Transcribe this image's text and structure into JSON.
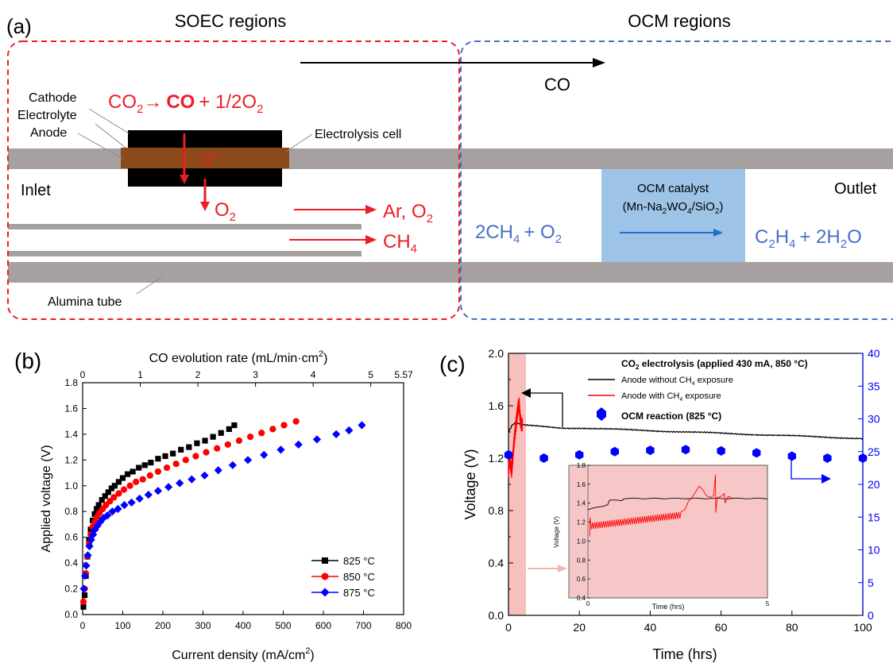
{
  "panel_a": {
    "label": "(a)",
    "soec_title": "SOEC regions",
    "ocm_title": "OCM regions",
    "co_arrow_label": "CO",
    "cathode": "Cathode",
    "electrolyte": "Electrolyte",
    "anode": "Anode",
    "reaction_main": "CO",
    "reaction_sub": "2",
    "reaction_arrow": "→",
    "reaction_bold": "CO",
    "reaction_tail": "+ 1/2O",
    "reaction_tail_sub": "2",
    "o2minus": "O",
    "o2minus_sup": "2-",
    "electrolysis_cell": "Electrolysis cell",
    "inlet": "Inlet",
    "o2_main": "O",
    "o2_sub": "2",
    "ar_o2_main": "Ar, O",
    "ar_o2_sub": "2",
    "ch4_main": "CH",
    "ch4_sub": "4",
    "alumina_tube": "Alumina tube",
    "lhs_a": "2CH",
    "lhs_a_sub": "4",
    "lhs_b": "+ O",
    "lhs_b_sub": "2",
    "ocm_catalyst": "OCM catalyst",
    "ocm_catalyst_formula_a": "(Mn-Na",
    "ocm_catalyst_formula_sub1": "2",
    "ocm_catalyst_formula_b": "WO",
    "ocm_catalyst_formula_sub2": "4",
    "ocm_catalyst_formula_c": "/SiO",
    "ocm_catalyst_formula_sub3": "2",
    "ocm_catalyst_formula_d": ")",
    "rhs_a": "C",
    "rhs_a_sub": "2",
    "rhs_b": "H",
    "rhs_b_sub": "4",
    "rhs_c": "+ 2H",
    "rhs_c_sub": "2",
    "rhs_d": "O",
    "outlet": "Outlet",
    "colors": {
      "red": "#ee1c25",
      "blue": "#4a6fc7",
      "tube": "#a6a1a0",
      "cell": "#8b4a1a",
      "catalyst": "#9dc3e6"
    }
  },
  "panel_b": {
    "label": "(b)",
    "ylabel": "Applied voltage (V)",
    "xlabel_main": "Current density (mA/cm",
    "xlabel_sup": "2",
    "xlabel_end": ")",
    "top_label_main": "CO evolution rate (mL/min·cm",
    "top_label_sup": "2",
    "top_label_end": ")",
    "top_ticks": [
      "0",
      "1",
      "2",
      "3",
      "4",
      "5",
      "5.57"
    ],
    "x_ticks": [
      "0",
      "100",
      "200",
      "300",
      "400",
      "500",
      "600",
      "700",
      "800"
    ],
    "y_ticks": [
      "0.0",
      "0.2",
      "0.4",
      "0.6",
      "0.8",
      "1.0",
      "1.2",
      "1.4",
      "1.6",
      "1.8"
    ],
    "legend": [
      {
        "name": "825 °C",
        "color": "#000000",
        "marker": "square"
      },
      {
        "name": "850 °C",
        "color": "#ff0000",
        "marker": "circle"
      },
      {
        "name": "875 °C",
        "color": "#0000ff",
        "marker": "diamond"
      }
    ]
  },
  "panel_c": {
    "label": "(c)",
    "ylabel_left": "Voltage (V)",
    "xlabel": "Time (hrs)",
    "x_ticks": [
      "0",
      "20",
      "40",
      "60",
      "80",
      "100"
    ],
    "y_ticks_left": [
      "0.0",
      "0.4",
      "0.8",
      "1.2",
      "1.6",
      "2.0"
    ],
    "y_ticks_right": [
      "0",
      "5",
      "10",
      "15",
      "20",
      "25",
      "30",
      "35",
      "40"
    ],
    "legend_title_a": "CO",
    "legend_title_sub": "2",
    "legend_title_b": " electrolysis (applied 430 mA, 850 °C)",
    "legend_black_a": "Anode without CH",
    "legend_black_sub": "4",
    "legend_black_b": " exposure",
    "legend_red_a": "Anode with CH",
    "legend_red_sub": "4",
    "legend_red_b": " exposure",
    "legend_ocm": "OCM reaction (825 °C)",
    "inset_ylabel": "Voltage (V)",
    "inset_xlabel": "Time (hrs)",
    "inset_x_ticks": [
      "0",
      "5"
    ],
    "inset_y_ticks": [
      "0.4",
      "0.6",
      "0.8",
      "1.0",
      "1.2",
      "1.4",
      "1.6",
      "1.8"
    ]
  },
  "chart_data": [
    {
      "type": "scatter",
      "panel": "b",
      "xlabel": "Current density (mA/cm2)",
      "ylabel": "Applied voltage (V)",
      "xlim": [
        0,
        800
      ],
      "ylim": [
        0,
        1.8
      ],
      "top_axis": {
        "label": "CO evolution rate (mL/min·cm2)",
        "range": [
          0,
          5.57
        ]
      },
      "series": [
        {
          "name": "825 °C",
          "color": "#000000",
          "marker": "square",
          "x": [
            2,
            5,
            8,
            12,
            16,
            20,
            25,
            30,
            35,
            40,
            48,
            56,
            64,
            72,
            80,
            90,
            100,
            112,
            125,
            140,
            155,
            170,
            188,
            206,
            225,
            245,
            265,
            285,
            305,
            325,
            345,
            365,
            378
          ],
          "y": [
            0.06,
            0.15,
            0.3,
            0.45,
            0.58,
            0.66,
            0.73,
            0.78,
            0.82,
            0.85,
            0.89,
            0.92,
            0.95,
            0.98,
            1.0,
            1.03,
            1.06,
            1.09,
            1.11,
            1.14,
            1.16,
            1.18,
            1.21,
            1.23,
            1.25,
            1.28,
            1.3,
            1.33,
            1.35,
            1.38,
            1.41,
            1.44,
            1.47
          ]
        },
        {
          "name": "850 °C",
          "color": "#ff0000",
          "marker": "circle",
          "x": [
            2,
            5,
            8,
            12,
            16,
            20,
            25,
            30,
            36,
            42,
            50,
            58,
            68,
            78,
            90,
            103,
            118,
            133,
            150,
            168,
            188,
            210,
            233,
            257,
            282,
            308,
            335,
            362,
            390,
            418,
            446,
            474,
            502,
            532
          ],
          "y": [
            0.1,
            0.2,
            0.32,
            0.45,
            0.55,
            0.62,
            0.68,
            0.72,
            0.76,
            0.79,
            0.82,
            0.85,
            0.88,
            0.91,
            0.94,
            0.97,
            1.0,
            1.03,
            1.05,
            1.08,
            1.11,
            1.14,
            1.17,
            1.2,
            1.23,
            1.26,
            1.29,
            1.32,
            1.35,
            1.38,
            1.41,
            1.44,
            1.47,
            1.5
          ]
        },
        {
          "name": "875 °C",
          "color": "#0000ff",
          "marker": "diamond",
          "x": [
            3,
            6,
            9,
            13,
            17,
            21,
            26,
            31,
            37,
            44,
            52,
            62,
            74,
            88,
            104,
            122,
            142,
            164,
            188,
            214,
            242,
            272,
            304,
            338,
            374,
            412,
            452,
            494,
            538,
            584,
            632,
            664,
            696
          ],
          "y": [
            0.2,
            0.3,
            0.38,
            0.46,
            0.53,
            0.58,
            0.62,
            0.66,
            0.69,
            0.72,
            0.75,
            0.77,
            0.8,
            0.82,
            0.85,
            0.87,
            0.9,
            0.93,
            0.96,
            0.99,
            1.02,
            1.05,
            1.08,
            1.12,
            1.16,
            1.2,
            1.24,
            1.28,
            1.32,
            1.36,
            1.4,
            1.43,
            1.47
          ]
        }
      ]
    },
    {
      "type": "line",
      "panel": "c",
      "xlabel": "Time (hrs)",
      "ylabel": "Voltage (V)",
      "xlim": [
        0,
        100
      ],
      "ylim": [
        0,
        2.0
      ],
      "y2lim": [
        0,
        40
      ],
      "highlight_range": [
        0,
        5
      ],
      "series": [
        {
          "name": "Anode without CH4 exposure",
          "color": "#000000",
          "axis": "left",
          "x": [
            0,
            1,
            2,
            3,
            5,
            10,
            15,
            20,
            30,
            40,
            50,
            60,
            70,
            80,
            90,
            100
          ],
          "y": [
            1.4,
            1.45,
            1.47,
            1.46,
            1.45,
            1.44,
            1.43,
            1.43,
            1.42,
            1.41,
            1.4,
            1.39,
            1.38,
            1.37,
            1.36,
            1.35
          ]
        },
        {
          "name": "Anode with CH4 exposure",
          "color": "#ff0000",
          "axis": "left",
          "x": [
            0,
            0.3,
            0.6,
            0.9,
            1.2,
            1.5,
            1.8,
            2.1,
            2.4,
            2.7,
            3.0,
            3.3,
            3.6,
            4.0
          ],
          "y": [
            1.1,
            1.2,
            1.15,
            1.1,
            1.2,
            1.3,
            1.38,
            1.45,
            1.52,
            1.58,
            1.62,
            1.5,
            1.46,
            1.45
          ]
        },
        {
          "name": "OCM reaction (825 °C)",
          "color": "#0000ff",
          "axis": "right",
          "marker": "hexagon",
          "x": [
            0,
            10,
            20,
            30,
            40,
            50,
            60,
            70,
            80,
            90,
            100
          ],
          "y": [
            24.5,
            24,
            24.5,
            25,
            25.2,
            25.3,
            25.1,
            24.8,
            24.3,
            24,
            24
          ]
        }
      ]
    }
  ]
}
